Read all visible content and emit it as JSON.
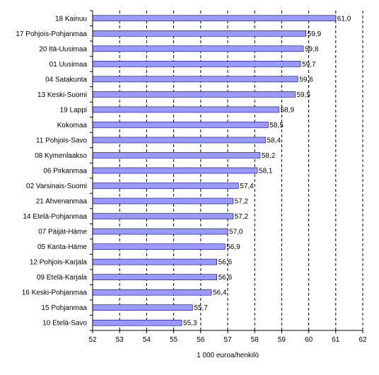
{
  "chart_data": {
    "type": "bar",
    "orientation": "horizontal",
    "categories": [
      "18 Kainuu",
      "17 Pohjois-Pohjanmaa",
      "20 Itä-Uusimaa",
      "01 Uusimaa",
      "04 Satakunta",
      "13 Keski-Suomi",
      "19 Lappi",
      "Kokomaa",
      "11 Pohjois-Savo",
      "08 Kymenlaakso",
      "06 Pirkanmaa",
      "02 Varsinais-Suomi",
      "21 Ahvenanmaa",
      "14 Etelä-Pohjanmaa",
      "07 Päijät-Häme",
      "05 Kanta-Häme",
      "12 Pohjois-Karjala",
      "09 Etelä-Karjala",
      "16 Keski-Pohjanmaa",
      "15 Pohjanmaa",
      "10 Etelä-Savo"
    ],
    "values": [
      61.0,
      59.9,
      59.8,
      59.7,
      59.6,
      59.5,
      58.9,
      58.5,
      58.4,
      58.2,
      58.1,
      57.4,
      57.2,
      57.2,
      57.0,
      56.9,
      56.6,
      56.6,
      56.4,
      55.7,
      55.3
    ],
    "value_labels": [
      "61,0",
      "59,9",
      "59,8",
      "59,7",
      "59,6",
      "59,5",
      "58,9",
      "58,5",
      "58,4",
      "58,2",
      "58,1",
      "57,4",
      "57,2",
      "57,2",
      "57,0",
      "56,9",
      "56,6",
      "56,6",
      "56,4",
      "55,7",
      "55,3"
    ],
    "xlim": [
      52,
      62
    ],
    "xticks": [
      52,
      53,
      54,
      55,
      56,
      57,
      58,
      59,
      60,
      61,
      62
    ],
    "xlabel": "1 000 euroa/henkilö",
    "ylabel": "",
    "title": "",
    "grid": "vertical dashed",
    "bar_color": "#9999ff",
    "bar_outline": "#000080"
  }
}
